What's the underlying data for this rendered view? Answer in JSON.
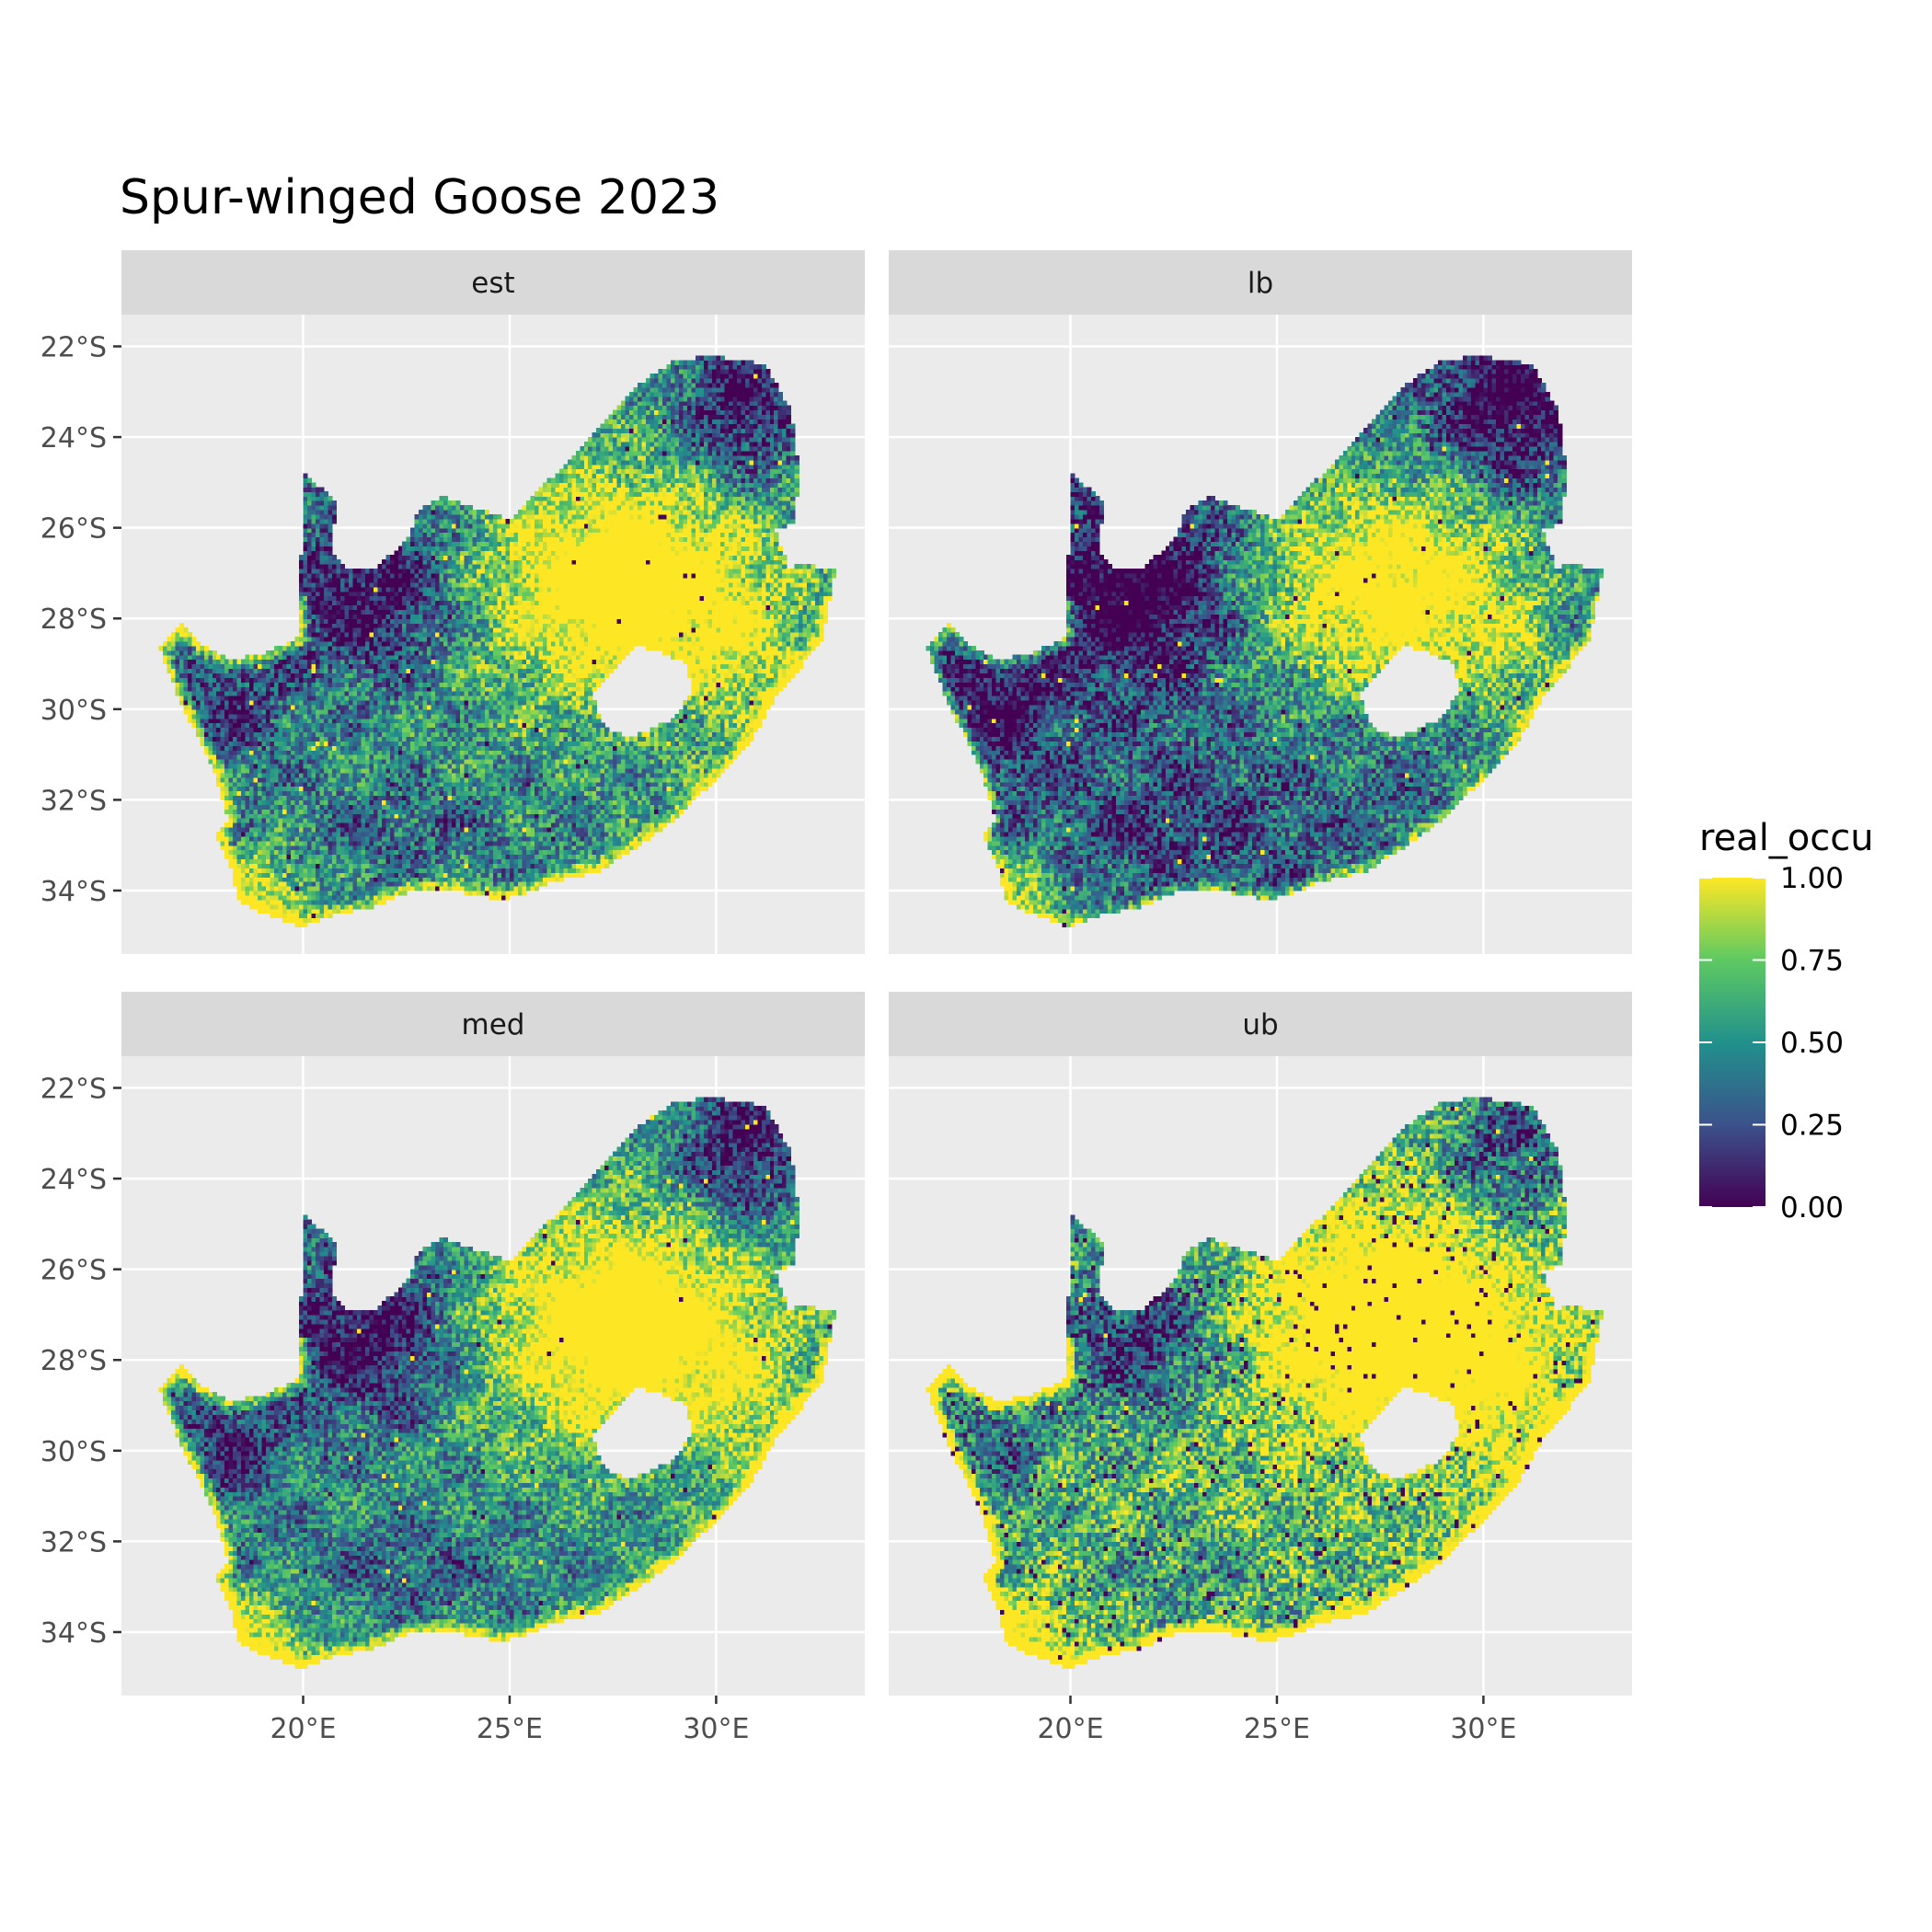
{
  "title": "Spur-winged Goose 2023",
  "colors": {
    "panel_bg": "#ebebeb",
    "strip_bg": "#d9d9d9",
    "grid": "#ffffff",
    "viridis": [
      "#440154",
      "#3b528b",
      "#21918c",
      "#5ec962",
      "#fde725"
    ]
  },
  "chart_data": {
    "type": "heatmap",
    "facets": [
      "est",
      "lb",
      "med",
      "ub"
    ],
    "x_ticks": [
      "20°E",
      "25°E",
      "30°E"
    ],
    "x_tick_values": [
      20,
      25,
      30
    ],
    "y_ticks": [
      "22°S",
      "24°S",
      "26°S",
      "28°S",
      "30°S",
      "32°S",
      "34°S"
    ],
    "y_tick_values": [
      -22,
      -24,
      -26,
      -28,
      -30,
      -32,
      -34
    ],
    "xlim": [
      15.6,
      33.6
    ],
    "ylim": [
      -35.4,
      -21.3
    ],
    "legend": {
      "title": "real_occu",
      "position": "right",
      "labels": [
        "1.00",
        "0.75",
        "0.50",
        "0.25",
        "0.00"
      ],
      "values": [
        1.0,
        0.75,
        0.5,
        0.25,
        0.0
      ]
    },
    "region_outline_lonlat": [
      [
        16.5,
        -28.6
      ],
      [
        17.1,
        -28.1
      ],
      [
        17.6,
        -28.6
      ],
      [
        18.2,
        -28.9
      ],
      [
        19.0,
        -28.8
      ],
      [
        19.9,
        -28.4
      ],
      [
        20.0,
        -24.8
      ],
      [
        20.8,
        -25.4
      ],
      [
        20.7,
        -26.5
      ],
      [
        21.1,
        -26.9
      ],
      [
        21.7,
        -26.9
      ],
      [
        22.6,
        -26.2
      ],
      [
        22.8,
        -25.6
      ],
      [
        23.4,
        -25.3
      ],
      [
        24.3,
        -25.6
      ],
      [
        25.0,
        -25.8
      ],
      [
        26.0,
        -24.9
      ],
      [
        26.6,
        -24.3
      ],
      [
        27.3,
        -23.6
      ],
      [
        28.0,
        -22.9
      ],
      [
        29.0,
        -22.3
      ],
      [
        29.9,
        -22.2
      ],
      [
        31.2,
        -22.4
      ],
      [
        31.8,
        -23.4
      ],
      [
        32.0,
        -24.7
      ],
      [
        31.9,
        -25.9
      ],
      [
        31.4,
        -26.0
      ],
      [
        31.8,
        -27.0
      ],
      [
        32.0,
        -26.8
      ],
      [
        32.9,
        -26.9
      ],
      [
        32.6,
        -28.4
      ],
      [
        32.1,
        -29.0
      ],
      [
        31.4,
        -29.8
      ],
      [
        30.9,
        -30.6
      ],
      [
        30.3,
        -31.3
      ],
      [
        29.7,
        -31.8
      ],
      [
        28.9,
        -32.5
      ],
      [
        28.0,
        -33.1
      ],
      [
        27.1,
        -33.6
      ],
      [
        26.0,
        -33.8
      ],
      [
        25.6,
        -34.0
      ],
      [
        24.8,
        -34.2
      ],
      [
        23.6,
        -34.0
      ],
      [
        22.6,
        -34.0
      ],
      [
        21.6,
        -34.4
      ],
      [
        20.8,
        -34.5
      ],
      [
        20.0,
        -34.8
      ],
      [
        19.3,
        -34.6
      ],
      [
        18.8,
        -34.4
      ],
      [
        18.4,
        -34.2
      ],
      [
        18.3,
        -33.6
      ],
      [
        17.9,
        -32.8
      ],
      [
        18.2,
        -32.4
      ],
      [
        17.9,
        -31.5
      ],
      [
        17.5,
        -30.7
      ],
      [
        17.0,
        -29.8
      ],
      [
        16.5,
        -28.6
      ]
    ],
    "hole_outline_lonlat": [
      [
        27.0,
        -29.7
      ],
      [
        27.5,
        -29.2
      ],
      [
        28.1,
        -28.6
      ],
      [
        28.6,
        -28.7
      ],
      [
        29.3,
        -29.0
      ],
      [
        29.4,
        -29.6
      ],
      [
        29.0,
        -30.2
      ],
      [
        28.5,
        -30.4
      ],
      [
        28.0,
        -30.6
      ],
      [
        27.5,
        -30.5
      ],
      [
        27.2,
        -30.2
      ],
      [
        27.0,
        -29.7
      ]
    ]
  }
}
